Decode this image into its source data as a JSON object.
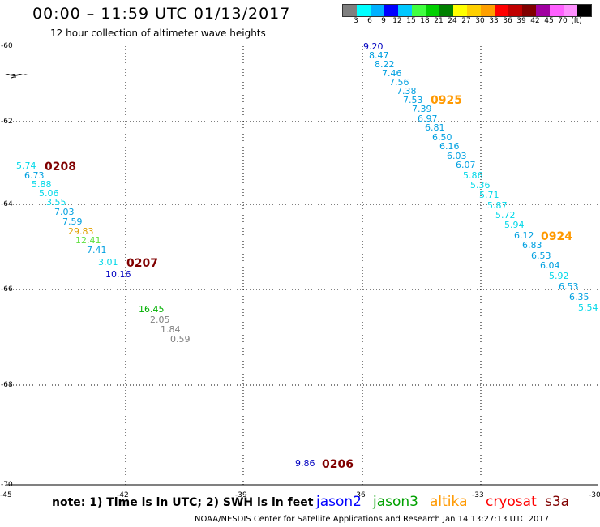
{
  "title": "00:00 – 11:59 UTC 01/13/2017",
  "subtitle": "12 hour collection of altimeter wave heights",
  "legend": {
    "colors": [
      "#7f7f7f",
      "#00ffff",
      "#00b0ff",
      "#0000ff",
      "#00c8ff",
      "#40ff40",
      "#00d000",
      "#008000",
      "#ffff00",
      "#ffd000",
      "#ffa000",
      "#ff0000",
      "#c00000",
      "#800000",
      "#a000a0",
      "#ff60ff",
      "#ff90ff",
      "#000000"
    ],
    "labels": [
      "3",
      "6",
      "9",
      "12",
      "15",
      "18",
      "21",
      "24",
      "27",
      "30",
      "33",
      "36",
      "39",
      "42",
      "45",
      "70",
      "(ft)"
    ]
  },
  "axes": {
    "y_ticks": [
      "-60",
      "-62",
      "-64",
      "-66",
      "-68",
      "-70"
    ],
    "x_ticks": [
      "-45",
      "-42",
      "-39",
      "-36",
      "-33",
      "-30"
    ]
  },
  "measurements": [
    {
      "v": "9.20",
      "c": "#0000c0"
    },
    {
      "v": "8.47",
      "c": "#00a0e0"
    },
    {
      "v": "8.22",
      "c": "#00a0e0"
    },
    {
      "v": "7.46",
      "c": "#00a0e0"
    },
    {
      "v": "7.56",
      "c": "#00a0e0"
    },
    {
      "v": "7.38",
      "c": "#00a0e0"
    },
    {
      "v": "7.53",
      "c": "#00a0e0"
    },
    {
      "v": "7.39",
      "c": "#00a0e0"
    },
    {
      "v": "6.97",
      "c": "#00a0e0"
    },
    {
      "v": "6.81",
      "c": "#00a0e0"
    },
    {
      "v": "6.50",
      "c": "#00a0e0"
    },
    {
      "v": "6.16",
      "c": "#00a0e0"
    },
    {
      "v": "6.03",
      "c": "#00a0e0"
    },
    {
      "v": "6.07",
      "c": "#00a0e0"
    },
    {
      "v": "5.86",
      "c": "#00d8e8"
    },
    {
      "v": "5.36",
      "c": "#00d8e8"
    },
    {
      "v": "5.71",
      "c": "#00d8e8"
    },
    {
      "v": "5.87",
      "c": "#00d8e8"
    },
    {
      "v": "5.72",
      "c": "#00d8e8"
    },
    {
      "v": "5.94",
      "c": "#00d8e8"
    },
    {
      "v": "6.12",
      "c": "#00a0e0"
    },
    {
      "v": "6.83",
      "c": "#00a0e0"
    },
    {
      "v": "6.53",
      "c": "#00a0e0"
    },
    {
      "v": "6.04",
      "c": "#00a0e0"
    },
    {
      "v": "5.92",
      "c": "#00d8e8"
    },
    {
      "v": "6.53",
      "c": "#00a0e0"
    },
    {
      "v": "6.35",
      "c": "#00a0e0"
    },
    {
      "v": "5.54",
      "c": "#00d8e8"
    },
    {
      "v": "5.74",
      "c": "#00d8e8"
    },
    {
      "v": "6.73",
      "c": "#00a0e0"
    },
    {
      "v": "5.88",
      "c": "#00d8e8"
    },
    {
      "v": "5.06",
      "c": "#00d8e8"
    },
    {
      "v": "3.55",
      "c": "#00d8e8"
    },
    {
      "v": "7.03",
      "c": "#00a0e0"
    },
    {
      "v": "7.59",
      "c": "#00a0e0"
    },
    {
      "v": "29.83",
      "c": "#e0a000"
    },
    {
      "v": "12.41",
      "c": "#60e040"
    },
    {
      "v": "7.41",
      "c": "#00a0e0"
    },
    {
      "v": "3.01",
      "c": "#00d8e8"
    },
    {
      "v": "10.16",
      "c": "#0000c0"
    },
    {
      "v": "16.45",
      "c": "#00b000"
    },
    {
      "v": "2.05",
      "c": "#808080"
    },
    {
      "v": "1.84",
      "c": "#808080"
    },
    {
      "v": "0.59",
      "c": "#808080"
    },
    {
      "v": "9.86",
      "c": "#0000c0"
    }
  ],
  "pass_labels": [
    {
      "v": "0925",
      "c": "#ff9900"
    },
    {
      "v": "0208",
      "c": "#800000"
    },
    {
      "v": "0924",
      "c": "#ff9900"
    },
    {
      "v": "0207",
      "c": "#800000"
    },
    {
      "v": "0206",
      "c": "#800000"
    }
  ],
  "note": "note: 1) Time is in UTC; 2) SWH is in feet",
  "satellites": [
    {
      "name": "jason2",
      "color": "#0000ff"
    },
    {
      "name": "jason3",
      "color": "#00a000"
    },
    {
      "name": "altika",
      "color": "#ff9900"
    },
    {
      "name": "cryosat",
      "color": "#ff0000"
    },
    {
      "name": "s3a",
      "color": "#800000"
    }
  ],
  "footer": "NOAA/NESDIS Center for Satellite Applications and Research     Jan 14 13:27:13 UTC 2017"
}
